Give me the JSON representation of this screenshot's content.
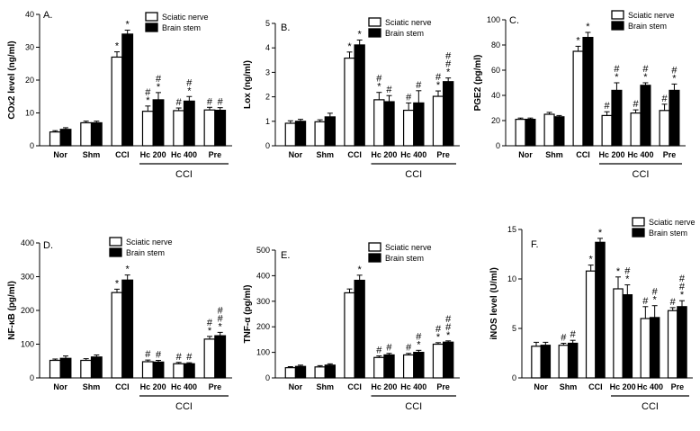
{
  "figure": {
    "legend": {
      "open_label": "Sciatic nerve",
      "filled_label": "Brain stem"
    },
    "group_label": "CCI"
  },
  "colors": {
    "open_bar": "#ffffff",
    "filled_bar": "#000000",
    "axis": "#000000"
  },
  "chart_data": [
    {
      "panel": "A.",
      "type": "bar",
      "ylabel": "COx2 level (ng/ml)",
      "ylim": [
        0,
        40
      ],
      "yticks": [
        0,
        10,
        20,
        30,
        40
      ],
      "categories": [
        "Nor",
        "Shm",
        "CCI",
        "Hc 200",
        "Hc 400",
        "Pre"
      ],
      "series": [
        {
          "name": "Sciatic nerve",
          "values": [
            4.2,
            7.0,
            27.0,
            10.5,
            10.7,
            10.9
          ],
          "errors": [
            0.4,
            0.5,
            1.6,
            1.6,
            0.8,
            0.8
          ],
          "marks": [
            "",
            "",
            "*",
            "#\n*",
            "#",
            "#"
          ]
        },
        {
          "name": "Brain stem",
          "values": [
            5.0,
            7.0,
            34.0,
            14.0,
            13.6,
            10.8
          ],
          "errors": [
            0.5,
            0.5,
            1.2,
            2.2,
            1.4,
            0.8
          ],
          "marks": [
            "",
            "",
            "*",
            "#\n*",
            "#\n*",
            "#"
          ]
        }
      ]
    },
    {
      "panel": "B.",
      "type": "bar",
      "ylabel": "Lox (ng/ml)",
      "ylim": [
        0,
        5
      ],
      "yticks": [
        0,
        1,
        2,
        3,
        4,
        5
      ],
      "categories": [
        "Nor",
        "Shm",
        "CCI",
        "Hc 200",
        "Hc 400",
        "Pre"
      ],
      "series": [
        {
          "name": "Sciatic nerve",
          "values": [
            0.92,
            0.98,
            3.58,
            1.88,
            1.45,
            2.02
          ],
          "errors": [
            0.1,
            0.08,
            0.25,
            0.3,
            0.3,
            0.22
          ],
          "marks": [
            "",
            "",
            "*",
            "#\n*",
            "#",
            "#\n*"
          ]
        },
        {
          "name": "Brain stem",
          "values": [
            1.0,
            1.18,
            4.12,
            1.8,
            1.75,
            2.62
          ],
          "errors": [
            0.08,
            0.15,
            0.2,
            0.25,
            0.5,
            0.15
          ],
          "marks": [
            "",
            "",
            "*",
            "#",
            "#",
            "#\n#\n*"
          ]
        }
      ]
    },
    {
      "panel": "C.",
      "type": "bar",
      "ylabel": "PGE2 (pg/ml)",
      "ylim": [
        0,
        100
      ],
      "yticks": [
        0,
        20,
        40,
        60,
        80,
        100
      ],
      "categories": [
        "Nor",
        "Shm",
        "CCI",
        "Hc 200",
        "Hc 400",
        "Pre"
      ],
      "series": [
        {
          "name": "Sciatic nerve",
          "values": [
            21.0,
            25.0,
            75.0,
            24.0,
            26.0,
            28.0
          ],
          "errors": [
            1.0,
            1.5,
            4.0,
            3.0,
            2.5,
            5.0
          ],
          "marks": [
            "",
            "",
            "*",
            "#",
            "#",
            "#"
          ]
        },
        {
          "name": "Brain stem",
          "values": [
            21.0,
            23.0,
            86.0,
            44.0,
            48.0,
            44.0
          ],
          "errors": [
            1.0,
            1.0,
            4.0,
            6.0,
            2.0,
            5.0
          ],
          "marks": [
            "",
            "",
            "*",
            "#\n*",
            "#\n*",
            "#\n*"
          ]
        }
      ]
    },
    {
      "panel": "D.",
      "type": "bar",
      "ylabel": "NF-κB (pg/ml)",
      "ylim": [
        0,
        400
      ],
      "yticks": [
        0,
        100,
        200,
        300,
        400
      ],
      "categories": [
        "Nor",
        "Shm",
        "CCI",
        "Hc 200",
        "Hc 400",
        "Pre"
      ],
      "series": [
        {
          "name": "Sciatic nerve",
          "values": [
            52,
            52,
            253,
            48,
            42,
            115
          ],
          "errors": [
            4,
            5,
            10,
            5,
            4,
            8
          ],
          "marks": [
            "",
            "",
            "*",
            "#",
            "#",
            "#\n*"
          ]
        },
        {
          "name": "Brain stem",
          "values": [
            58,
            62,
            290,
            47,
            42,
            125
          ],
          "errors": [
            7,
            6,
            15,
            5,
            3,
            10
          ],
          "marks": [
            "",
            "",
            "*",
            "#",
            "#",
            "#\n#\n*"
          ]
        }
      ]
    },
    {
      "panel": "E.",
      "type": "bar",
      "ylabel": "TNF-α (pg/ml)",
      "ylim": [
        0,
        500
      ],
      "yticks": [
        0,
        100,
        200,
        300,
        400,
        500
      ],
      "categories": [
        "Nor",
        "Shm",
        "CCI",
        "Hc 200",
        "Hc 400",
        "Pre"
      ],
      "series": [
        {
          "name": "Sciatic nerve",
          "values": [
            40,
            43,
            333,
            80,
            90,
            132
          ],
          "errors": [
            4,
            5,
            15,
            6,
            6,
            6
          ],
          "marks": [
            "",
            "",
            "",
            "#",
            "#",
            "#\n*"
          ]
        },
        {
          "name": "Brain stem",
          "values": [
            45,
            50,
            382,
            90,
            100,
            140
          ],
          "errors": [
            5,
            5,
            20,
            6,
            8,
            5
          ],
          "marks": [
            "",
            "",
            "*",
            "#",
            "#\n*",
            "#\n#\n*"
          ]
        }
      ]
    },
    {
      "panel": "F.",
      "type": "bar",
      "ylabel": "iNOS level (U/ml)",
      "ylim": [
        0,
        15
      ],
      "yticks": [
        0,
        5,
        10,
        15
      ],
      "categories": [
        "Nor",
        "Shm",
        "CCI",
        "Hc 200",
        "Hc 400",
        "Pre"
      ],
      "series": [
        {
          "name": "Sciatic nerve",
          "values": [
            3.2,
            3.3,
            10.8,
            9.0,
            6.0,
            6.8
          ],
          "errors": [
            0.4,
            0.2,
            0.6,
            1.2,
            1.2,
            0.3
          ],
          "marks": [
            "",
            "#",
            "*",
            "*",
            "#",
            "#"
          ]
        },
        {
          "name": "Brain stem",
          "values": [
            3.3,
            3.5,
            13.7,
            8.4,
            6.1,
            7.2
          ],
          "errors": [
            0.3,
            0.3,
            0.4,
            1.0,
            1.2,
            0.6
          ],
          "marks": [
            "",
            "#",
            "*",
            "#\n*",
            "#\n*",
            "#\n#\n*"
          ]
        }
      ]
    }
  ]
}
